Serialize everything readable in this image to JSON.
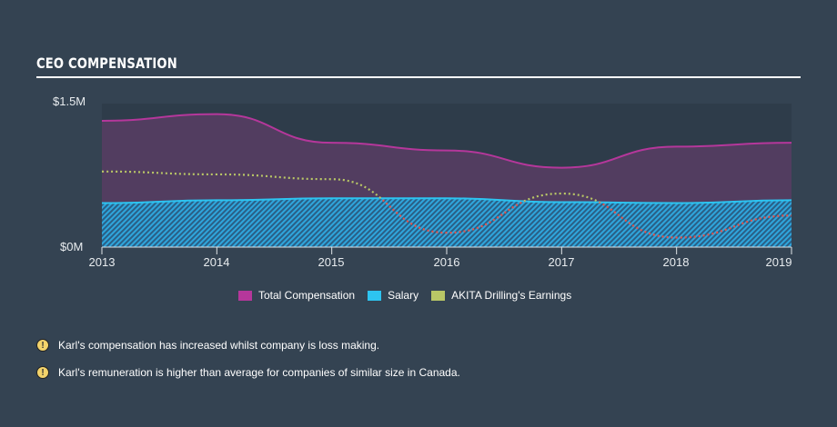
{
  "header": {
    "title": "CEO COMPENSATION"
  },
  "chart_data": {
    "type": "area",
    "title": "CEO COMPENSATION",
    "xlabel": "",
    "ylabel": "",
    "x": [
      2013,
      2014,
      2015,
      2016,
      2017,
      2018,
      2019
    ],
    "x_tick_labels": [
      "2013",
      "2014",
      "2015",
      "2016",
      "2017",
      "2018",
      "2019"
    ],
    "y_tick_labels": [
      "$0M",
      "$1.5M"
    ],
    "ylim": [
      0,
      1.5
    ],
    "units": "USD millions",
    "grid": false,
    "legend_position": "bottom",
    "series": [
      {
        "name": "Total Compensation",
        "color": "#b5379b",
        "style": "area",
        "values": [
          1.32,
          1.39,
          1.09,
          1.01,
          0.83,
          1.05,
          1.09
        ]
      },
      {
        "name": "Salary",
        "color": "#2dc4f0",
        "style": "hatched-area",
        "values": [
          0.46,
          0.49,
          0.51,
          0.51,
          0.47,
          0.46,
          0.49
        ]
      },
      {
        "name": "AKITA Drilling's Earnings",
        "color": "#b9c766",
        "negative_color": "#e8524a",
        "style": "dotted-line",
        "values": [
          0.79,
          0.76,
          0.71,
          0.15,
          0.56,
          0.1,
          0.33
        ]
      }
    ]
  },
  "axis": {
    "y_top": "$1.5M",
    "y_bottom": "$0M",
    "x_labels": [
      "2013",
      "2014",
      "2015",
      "2016",
      "2017",
      "2018",
      "2019"
    ]
  },
  "legend": [
    {
      "label": "Total Compensation",
      "color": "#b5379b"
    },
    {
      "label": "Salary",
      "color": "#2dc4f0"
    },
    {
      "label": "AKITA Drilling's Earnings",
      "color": "#b9c766"
    }
  ],
  "notes": [
    {
      "icon": "warning-icon",
      "text": "Karl's compensation has increased whilst company is loss making."
    },
    {
      "icon": "warning-icon",
      "text": "Karl's remuneration is higher than average for companies of similar size in Canada."
    }
  ]
}
